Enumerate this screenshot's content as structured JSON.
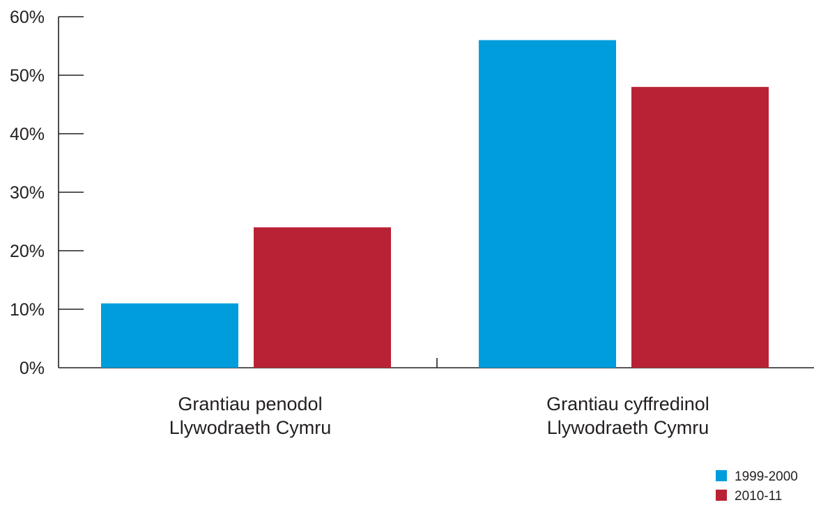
{
  "chart_data": {
    "type": "bar",
    "categories": [
      [
        "Grantiau penodol",
        "Llywodraeth Cymru"
      ],
      [
        "Grantiau cyffredinol",
        "Llywodraeth Cymru"
      ]
    ],
    "series": [
      {
        "name": "1999-2000",
        "values": [
          11,
          56
        ],
        "color": "#009ddc"
      },
      {
        "name": "2010-11",
        "values": [
          24,
          48
        ],
        "color": "#b92234"
      }
    ],
    "ylim": [
      0,
      60
    ],
    "yticks": [
      0,
      10,
      20,
      30,
      40,
      50,
      60
    ],
    "ytick_labels": [
      "0%",
      "10%",
      "20%",
      "30%",
      "40%",
      "50%",
      "60%"
    ],
    "y_unit": "%",
    "title": "",
    "xlabel": "",
    "ylabel": "",
    "grid": false,
    "legend_position": "bottom-right"
  }
}
